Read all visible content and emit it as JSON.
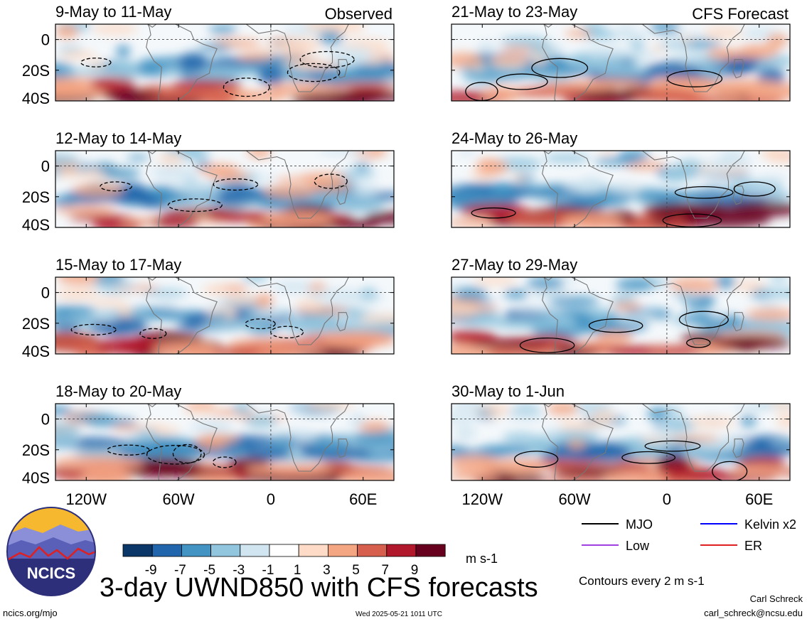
{
  "title": "3-day UWND850 with CFS forecasts",
  "contour_note": "Contours every 2 m s-1",
  "site": "ncics.org/mjo",
  "timestamp": "Wed 2025-05-21 1011 UTC",
  "author": {
    "name": "Carl Schreck",
    "email": "carl_schreck@ncsu.edu"
  },
  "logo_text": "NCICS",
  "columns": {
    "observed": "Observed",
    "forecast": "CFS Forecast"
  },
  "panels": [
    {
      "label": "9-May to 11-May",
      "type": "observed"
    },
    {
      "label": "12-May to 14-May",
      "type": "observed"
    },
    {
      "label": "15-May to 17-May",
      "type": "observed"
    },
    {
      "label": "18-May to 20-May",
      "type": "observed"
    },
    {
      "label": "21-May to 23-May",
      "type": "forecast"
    },
    {
      "label": "24-May to 26-May",
      "type": "forecast"
    },
    {
      "label": "27-May to 29-May",
      "type": "forecast"
    },
    {
      "label": "30-May to 1-Jun",
      "type": "forecast"
    }
  ],
  "colorbar": {
    "units": "m s-1",
    "ticks": [
      "-9",
      "-7",
      "-5",
      "-3",
      "-1",
      "1",
      "3",
      "5",
      "7",
      "9"
    ],
    "colors": [
      "#0b3668",
      "#2166ac",
      "#4393c3",
      "#92c5de",
      "#d1e5f0",
      "#ffffff",
      "#fddbc7",
      "#f4a582",
      "#d6604d",
      "#b2182b",
      "#67001f"
    ]
  },
  "legend": [
    {
      "label": "MJO",
      "color": "#000000"
    },
    {
      "label": "Kelvin x2",
      "color": "#0000ff"
    },
    {
      "label": "Low",
      "color": "#a040e0"
    },
    {
      "label": "ER",
      "color": "#e02020"
    }
  ],
  "chart_data": {
    "type": "heatmap",
    "variable": "UWND850",
    "x_ticks": [
      "120W",
      "60W",
      "0",
      "60E"
    ],
    "y_ticks": [
      "0",
      "20S",
      "40S"
    ],
    "xlim_deg": [
      -140,
      80
    ],
    "ylim_deg": [
      -40,
      10
    ]
  }
}
